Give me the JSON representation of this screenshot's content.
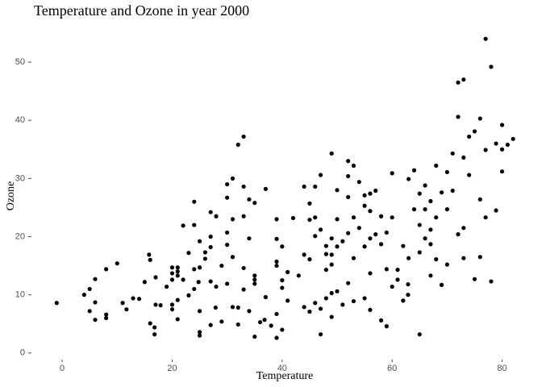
{
  "chart_data": {
    "type": "scatter",
    "title": "Temperature and Ozone in year 2000",
    "x_label": "Temperature",
    "y_label": "Ozone",
    "color": "#000000",
    "xlim": [
      -5,
      83
    ],
    "ylim": [
      -1,
      55
    ],
    "xticks": [
      0,
      20,
      40,
      60,
      80
    ],
    "yticks": [
      0,
      10,
      20,
      30,
      40,
      50
    ],
    "grid": false,
    "x": [
      -1,
      4,
      5,
      5,
      6,
      6,
      6,
      8,
      8,
      8,
      10,
      11,
      11.7,
      12.9,
      14,
      15,
      15.8,
      16,
      16,
      16.8,
      16.8,
      17,
      17,
      17.9,
      19,
      20,
      20,
      20,
      20,
      20,
      21,
      21,
      21,
      21,
      21,
      22,
      22,
      23,
      23,
      24,
      24,
      24,
      24,
      24.8,
      25,
      25,
      25,
      25,
      25,
      26,
      26,
      27,
      27,
      27,
      27,
      27,
      27.9,
      28,
      28,
      29,
      29,
      30,
      30,
      30,
      30,
      30,
      31,
      31,
      31,
      31,
      32,
      32,
      32,
      33,
      33,
      33,
      33,
      33,
      34,
      34,
      34,
      35,
      35,
      35,
      35,
      35,
      36,
      36.8,
      37,
      37,
      38,
      39,
      39,
      39,
      39,
      39,
      39,
      40,
      40,
      40,
      40,
      41,
      41,
      42,
      43,
      44,
      44,
      44,
      45,
      45,
      45,
      45,
      46,
      46,
      46,
      46,
      47,
      47,
      47,
      47,
      48,
      48,
      48,
      48,
      49,
      49,
      49,
      49,
      49,
      49,
      50,
      50,
      50,
      50,
      51,
      51,
      52,
      52,
      52,
      52,
      52,
      53,
      53,
      53,
      53,
      54,
      54,
      55,
      55,
      55,
      55,
      56,
      56,
      56,
      56,
      56,
      57,
      57,
      58,
      58,
      58,
      59,
      59,
      59,
      60,
      60,
      60,
      61,
      61,
      62,
      62,
      62.9,
      62.9,
      63,
      63,
      64,
      64,
      65,
      65,
      65,
      65,
      66,
      66,
      66,
      67,
      67,
      67,
      67,
      68,
      68,
      68,
      69,
      69,
      70,
      70,
      70,
      71,
      71,
      72,
      72,
      72,
      73,
      73,
      73,
      73,
      74,
      74,
      75,
      75,
      76,
      76,
      76,
      77,
      77,
      77,
      78,
      78,
      78.9,
      78.9,
      80,
      80,
      80,
      81,
      82
    ],
    "values": [
      8.6,
      10,
      11,
      7.2,
      12.7,
      8.7,
      5.7,
      14.4,
      6.6,
      6,
      15.4,
      8.6,
      7.5,
      9.4,
      9.3,
      12.2,
      16.9,
      16,
      5.1,
      4.4,
      3.2,
      13,
      8.3,
      8.2,
      11.4,
      14.7,
      13.7,
      12.6,
      8.3,
      7.5,
      14.7,
      14,
      13.3,
      9.1,
      5.8,
      21.9,
      12.6,
      17.2,
      9.9,
      22,
      26,
      14.4,
      11,
      12.2,
      7.2,
      3.6,
      3,
      14.7,
      19.2,
      16.2,
      17.3,
      24.2,
      20,
      18.2,
      12.3,
      4.8,
      7.8,
      11.4,
      23.5,
      15,
      5.4,
      20.7,
      11.9,
      26.7,
      29,
      18.6,
      30,
      23,
      16.5,
      7.9,
      35.8,
      4.9,
      7.8,
      37.2,
      28.6,
      23.5,
      14.6,
      10.9,
      7.2,
      26.4,
      19.7,
      25.8,
      13.3,
      12.6,
      11.9,
      2.8,
      5.3,
      5.7,
      28.2,
      9.6,
      4.7,
      6.7,
      23,
      19.6,
      15.7,
      15,
      2.6,
      12.5,
      11.2,
      4,
      18.3,
      9,
      13.9,
      23.2,
      13.3,
      28.6,
      16.9,
      7.9,
      25.7,
      22.9,
      16.1,
      7.1,
      8.6,
      28.6,
      23.3,
      20.1,
      30.6,
      7.6,
      3.2,
      21.2,
      14.3,
      17,
      9.4,
      18.4,
      34.3,
      10.3,
      19.7,
      6.2,
      16.9,
      15.2,
      28,
      10.6,
      18.3,
      23,
      19.2,
      8.3,
      33,
      30.4,
      26.8,
      20.6,
      12,
      32.2,
      23.3,
      8.9,
      16.3,
      29.4,
      21.5,
      27.1,
      25.3,
      18.3,
      9.4,
      27.4,
      24.4,
      19.7,
      13.7,
      7.4,
      20.4,
      27.9,
      5.6,
      18.7,
      23.5,
      4.6,
      14.4,
      20.7,
      30.9,
      23.3,
      11.4,
      12.6,
      14.3,
      9,
      18.4,
      11.8,
      10,
      16.3,
      29.9,
      31.4,
      24.7,
      3.2,
      17.3,
      22,
      27.4,
      28.8,
      19.7,
      24.7,
      21.2,
      13.3,
      26.1,
      18.7,
      32.2,
      16.1,
      23.3,
      11.7,
      27.6,
      31.1,
      24.7,
      15.2,
      34.3,
      27.9,
      46.5,
      40.6,
      20.4,
      47,
      33.6,
      21.5,
      16.3,
      37.2,
      30.6,
      12.7,
      38.1,
      40.3,
      16.5,
      26.4,
      54,
      34.9,
      23.3,
      49.2,
      12.3,
      36,
      24.5,
      39.2,
      31.2,
      35,
      35.8,
      36.8
    ]
  }
}
